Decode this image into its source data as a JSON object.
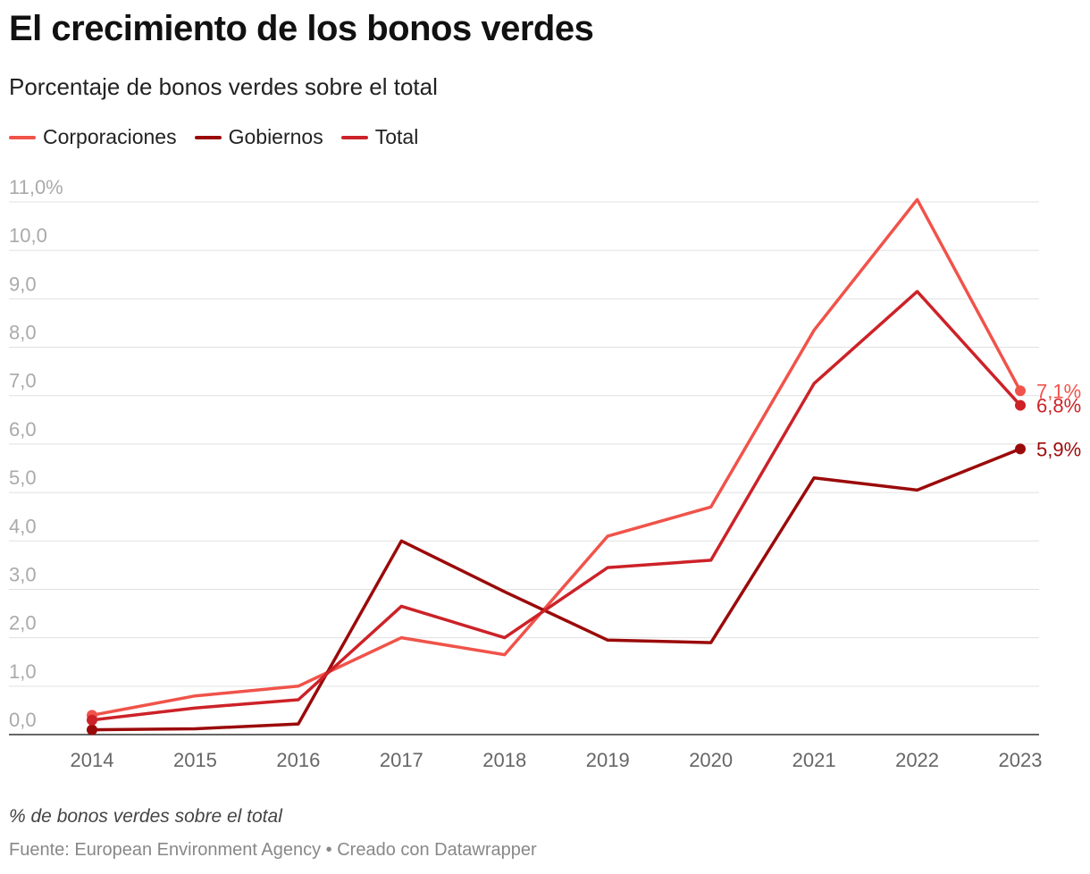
{
  "header": {
    "title": "El crecimiento de los bonos verdes",
    "subtitle": "Porcentaje de bonos verdes sobre el total"
  },
  "footer": {
    "notes": "% de bonos verdes sobre el total",
    "source": "Fuente: European Environment Agency • Creado con Datawrapper"
  },
  "chart_data": {
    "type": "line",
    "title": "El crecimiento de los bonos verdes",
    "subtitle": "Porcentaje de bonos verdes sobre el total",
    "x": [
      "2014",
      "2015",
      "2016",
      "2017",
      "2018",
      "2019",
      "2020",
      "2021",
      "2022",
      "2023"
    ],
    "ylim": [
      0,
      11
    ],
    "yticks": [
      "0,0",
      "1,0",
      "2,0",
      "3,0",
      "4,0",
      "5,0",
      "6,0",
      "7,0",
      "8,0",
      "9,0",
      "10,0",
      "11,0%"
    ],
    "grid": true,
    "legend_position": "top-left",
    "series": [
      {
        "name": "Corporaciones",
        "color": "#f0534a",
        "values": [
          0.4,
          0.8,
          1.0,
          2.0,
          1.65,
          4.1,
          4.7,
          8.35,
          11.05,
          7.1
        ],
        "end_label": "7,1%"
      },
      {
        "name": "Gobiernos",
        "color": "#9b0a0a",
        "values": [
          0.1,
          0.12,
          0.22,
          4.0,
          2.95,
          1.95,
          1.9,
          5.3,
          5.05,
          5.9
        ],
        "end_label": "5,9%"
      },
      {
        "name": "Total",
        "color": "#cc2228",
        "values": [
          0.3,
          0.55,
          0.72,
          2.65,
          2.0,
          3.45,
          3.6,
          7.25,
          9.15,
          6.8
        ],
        "end_label": "6,8%"
      }
    ]
  }
}
